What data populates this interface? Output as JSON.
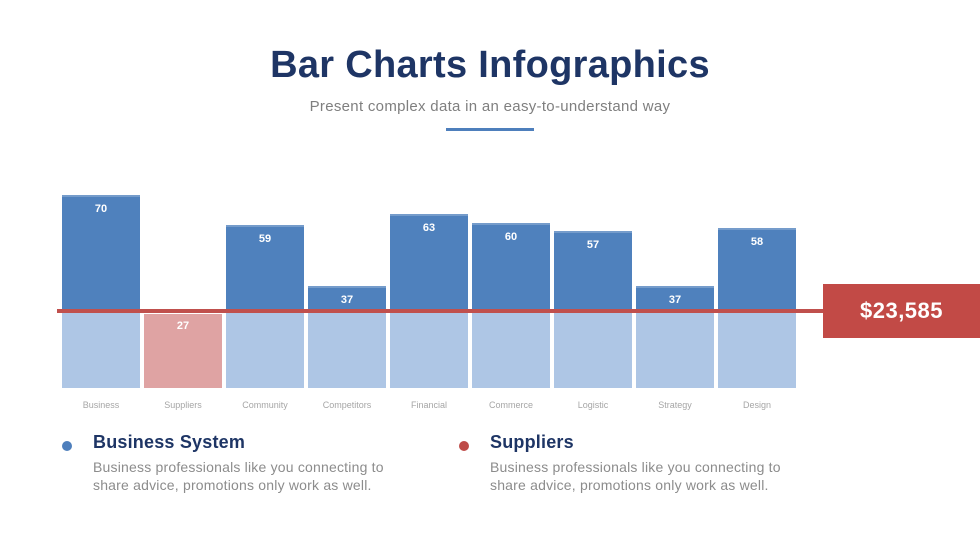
{
  "slide": {
    "title": "Bar Charts Infographics",
    "subtitle": "Present complex data in an easy-to-understand way"
  },
  "chart_data": {
    "type": "bar",
    "categories": [
      "Business",
      "Suppliers",
      "Community",
      "Competitors",
      "Financial",
      "Commerce",
      "Logistic",
      "Strategy",
      "Design"
    ],
    "values": [
      70,
      27,
      59,
      37,
      63,
      60,
      57,
      37,
      58
    ],
    "value_labels_shown": true,
    "axes_hidden": true,
    "grid": false,
    "ylim": [
      0,
      70
    ],
    "xlabel": "",
    "ylabel": "",
    "threshold_line": {
      "value": 28,
      "label": "$23,585",
      "color": "#C0504D",
      "badge_color": "#C24A46"
    },
    "highlight": {
      "category": "Suppliers",
      "color": "#DFA3A3"
    },
    "colors": {
      "above_line": "#4F81BD",
      "below_line": "#AEC6E5",
      "value_label_text": "#FFFFFF",
      "category_label_text": "#A6A6A6"
    }
  },
  "legend": {
    "items": [
      {
        "title": "Business System",
        "description": "Business professionals like you connecting to share advice, promotions only work as well.",
        "dot_color": "#4E7FBC"
      },
      {
        "title": "Suppliers",
        "description": "Business professionals like you connecting to share advice, promotions only work as well.",
        "dot_color": "#BE4B48"
      }
    ]
  },
  "accents": {
    "title_color": "#1E3565",
    "subtitle_color": "#7F7F7F",
    "underline_color": "#4E7FBC"
  }
}
